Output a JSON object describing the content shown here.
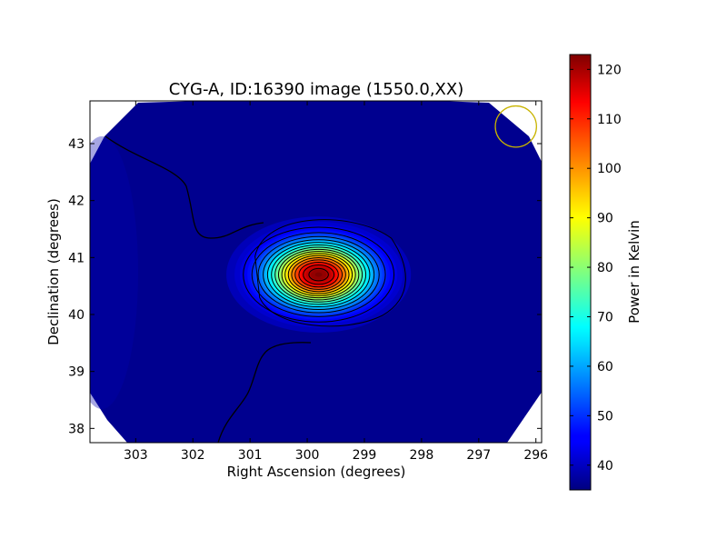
{
  "chart_data": {
    "type": "heatmap",
    "title": "CYG-A, ID:16390 image (1550.0,XX)",
    "xlabel": "Right Ascension (degrees)",
    "ylabel": "Declination (degrees)",
    "colorbar_label": "Power in Kelvin",
    "x_reversed": true,
    "xlim": [
      303.8,
      295.9
    ],
    "ylim": [
      37.75,
      43.75
    ],
    "x_ticks": [
      303,
      302,
      301,
      300,
      299,
      298,
      297,
      296
    ],
    "y_ticks": [
      38,
      39,
      40,
      41,
      42,
      43
    ],
    "colorbar_range": [
      35,
      123
    ],
    "colorbar_ticks": [
      40,
      50,
      60,
      70,
      80,
      90,
      100,
      110,
      120
    ],
    "colormap": "jet",
    "background_level": 38,
    "peak": {
      "ra": 299.8,
      "dec": 40.7,
      "value": 123
    },
    "source_width_deg": {
      "ra": 0.95,
      "dec": 0.6
    },
    "contour_color": "#000000",
    "beam_circle": {
      "ra": 296.35,
      "dec": 43.3,
      "radius_deg": 0.36,
      "color": "#c8b400"
    }
  }
}
